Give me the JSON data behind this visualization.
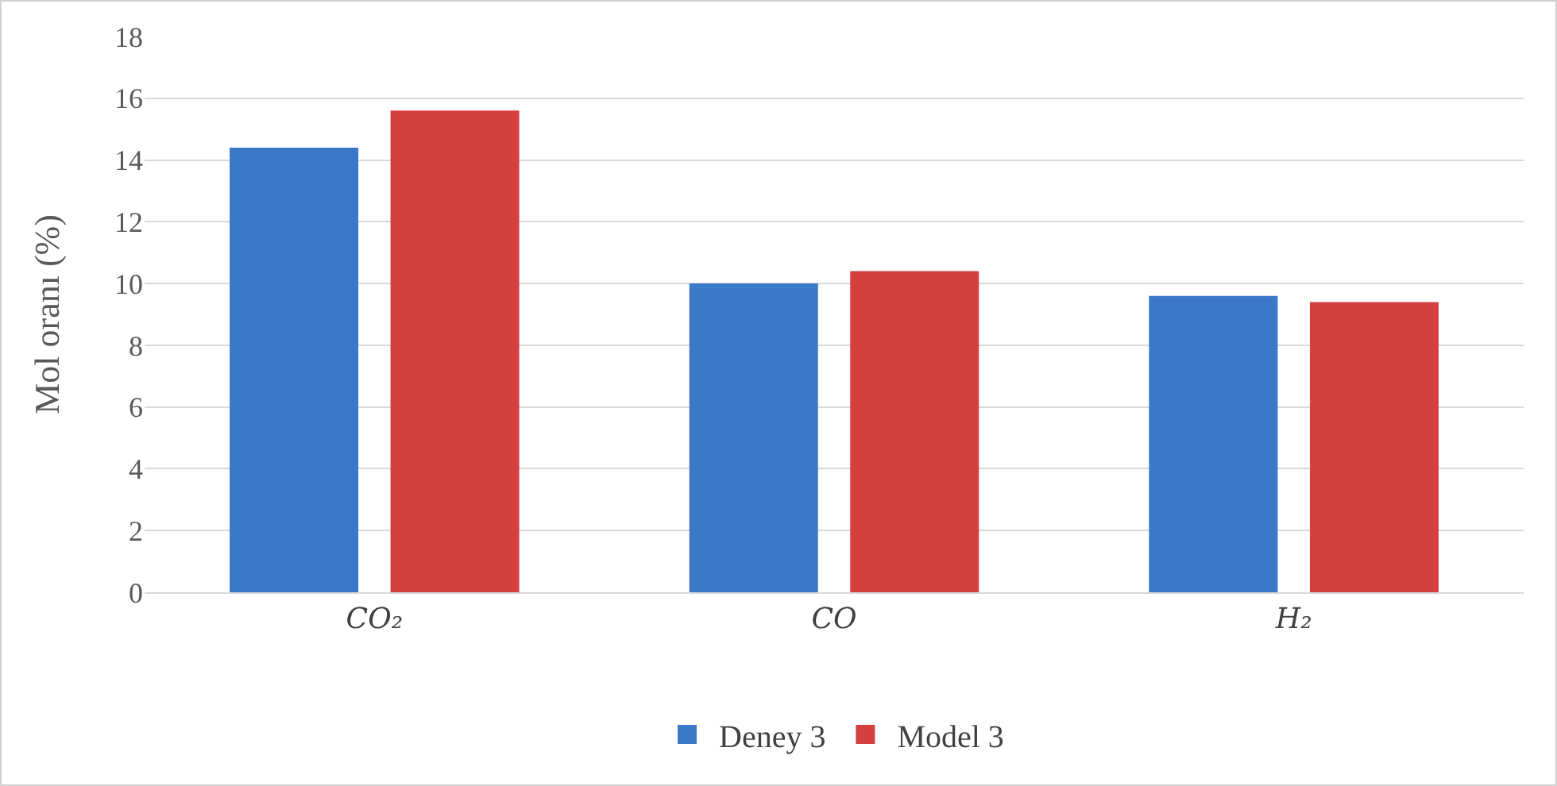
{
  "chart_data": {
    "type": "bar",
    "ylabel": "Mol oranı (%)",
    "categories": [
      "CO₂",
      "CO",
      "H₂"
    ],
    "series": [
      {
        "name": "Deney 3",
        "color": "#3b78c8",
        "values": [
          14.4,
          10.0,
          9.6
        ]
      },
      {
        "name": "Model 3",
        "color": "#d43f3f",
        "values": [
          15.6,
          10.4,
          9.4
        ]
      }
    ],
    "ylim": [
      0,
      18
    ],
    "yticks": [
      0,
      2,
      4,
      6,
      8,
      10,
      12,
      14,
      16,
      18
    ],
    "grid": "y",
    "legend": "bottom"
  }
}
